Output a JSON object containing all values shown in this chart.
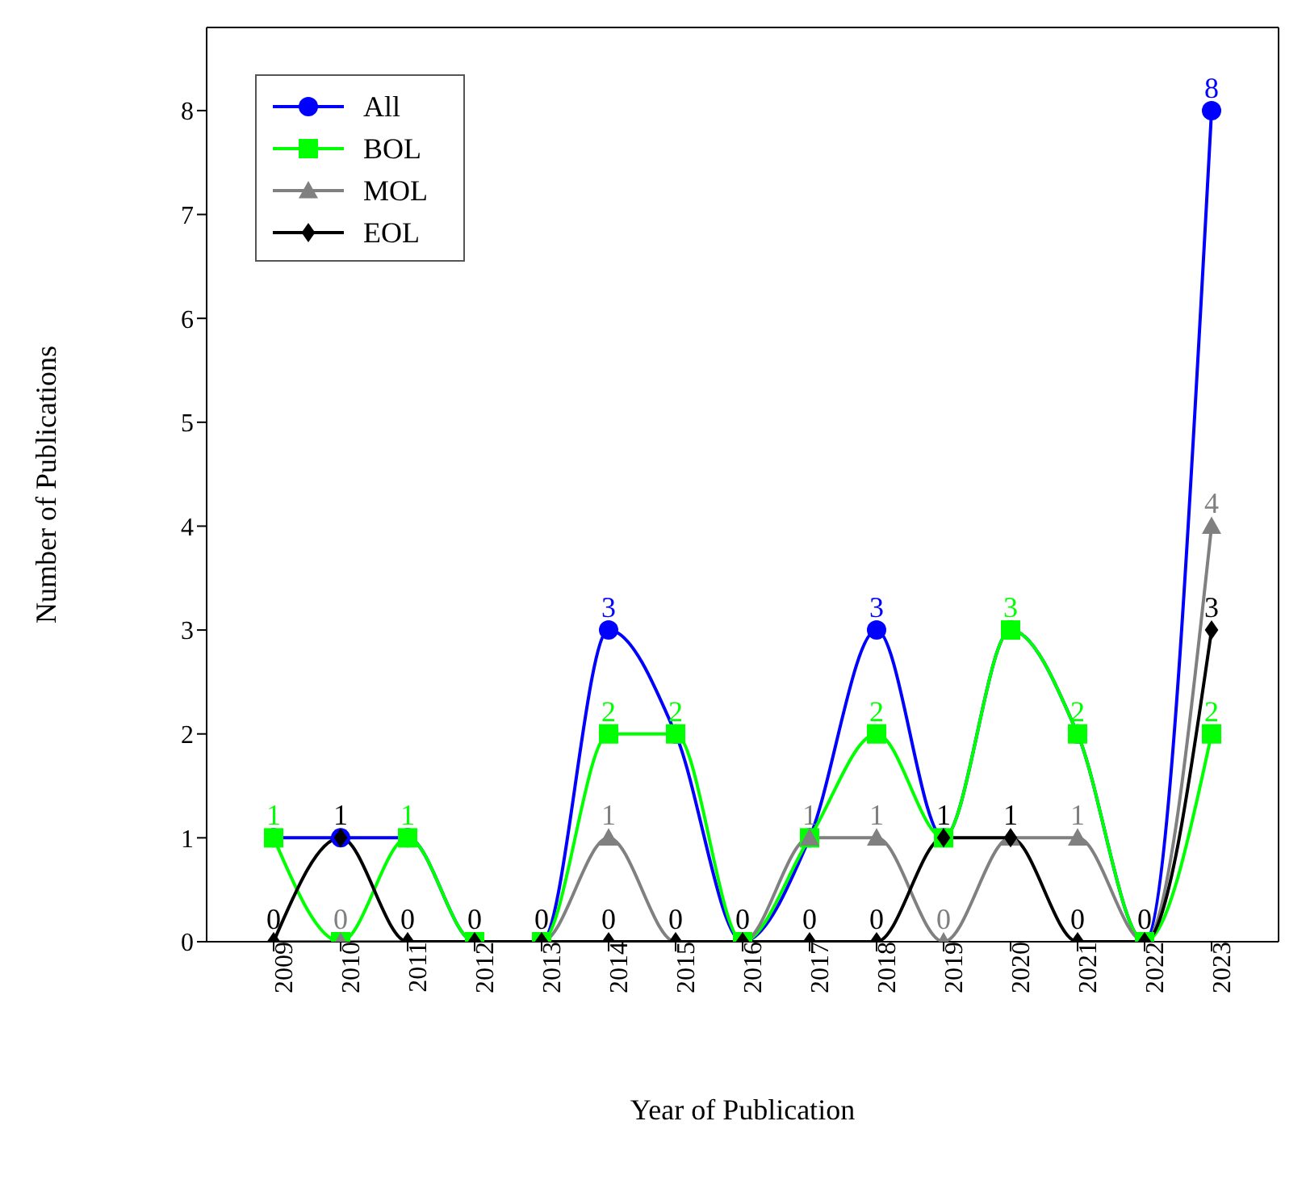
{
  "chart_data": {
    "type": "line",
    "xlabel": "Year of Publication",
    "ylabel": "Number of Publications",
    "categories": [
      "2009",
      "2010",
      "2011",
      "2012",
      "2013",
      "2014",
      "2015",
      "2016",
      "2017",
      "2018",
      "2019",
      "2020",
      "2021",
      "2022",
      "2023"
    ],
    "series": [
      {
        "name": "All",
        "color": "#0000ff",
        "marker": "circle",
        "values": [
          1,
          1,
          1,
          0,
          0,
          3,
          2,
          0,
          1,
          3,
          1,
          3,
          2,
          0,
          8
        ],
        "value_labels": [
          null,
          null,
          null,
          null,
          null,
          "3",
          null,
          null,
          null,
          "3",
          null,
          null,
          null,
          null,
          "8"
        ]
      },
      {
        "name": "BOL",
        "color": "#00ff00",
        "marker": "square",
        "values": [
          1,
          0,
          1,
          0,
          0,
          2,
          2,
          0,
          1,
          2,
          1,
          3,
          2,
          0,
          2
        ],
        "value_labels": [
          "1",
          null,
          "1",
          null,
          null,
          "2",
          "2",
          null,
          null,
          "2",
          null,
          "3",
          "2",
          null,
          "2"
        ]
      },
      {
        "name": "MOL",
        "color": "#808080",
        "marker": "triangle",
        "values": [
          0,
          0,
          0,
          0,
          0,
          1,
          0,
          0,
          1,
          1,
          0,
          1,
          1,
          0,
          4
        ],
        "value_labels": [
          null,
          "0",
          null,
          null,
          null,
          "1",
          null,
          null,
          "1",
          "1",
          "0",
          null,
          "1",
          null,
          "4"
        ]
      },
      {
        "name": "EOL",
        "color": "#000000",
        "marker": "diamond",
        "values": [
          0,
          1,
          0,
          0,
          0,
          0,
          0,
          0,
          0,
          0,
          1,
          1,
          0,
          0,
          3
        ],
        "value_labels": [
          "0",
          "1",
          "0",
          "0",
          "0",
          "0",
          "0",
          "0",
          "0",
          "0",
          "1",
          "1",
          "0",
          "0",
          "3"
        ]
      }
    ],
    "ylim": [
      0,
      8.8
    ],
    "yticks": [
      0,
      1,
      2,
      3,
      4,
      5,
      6,
      7,
      8
    ],
    "grid": false,
    "legend": "top left",
    "line_style": "solid"
  }
}
